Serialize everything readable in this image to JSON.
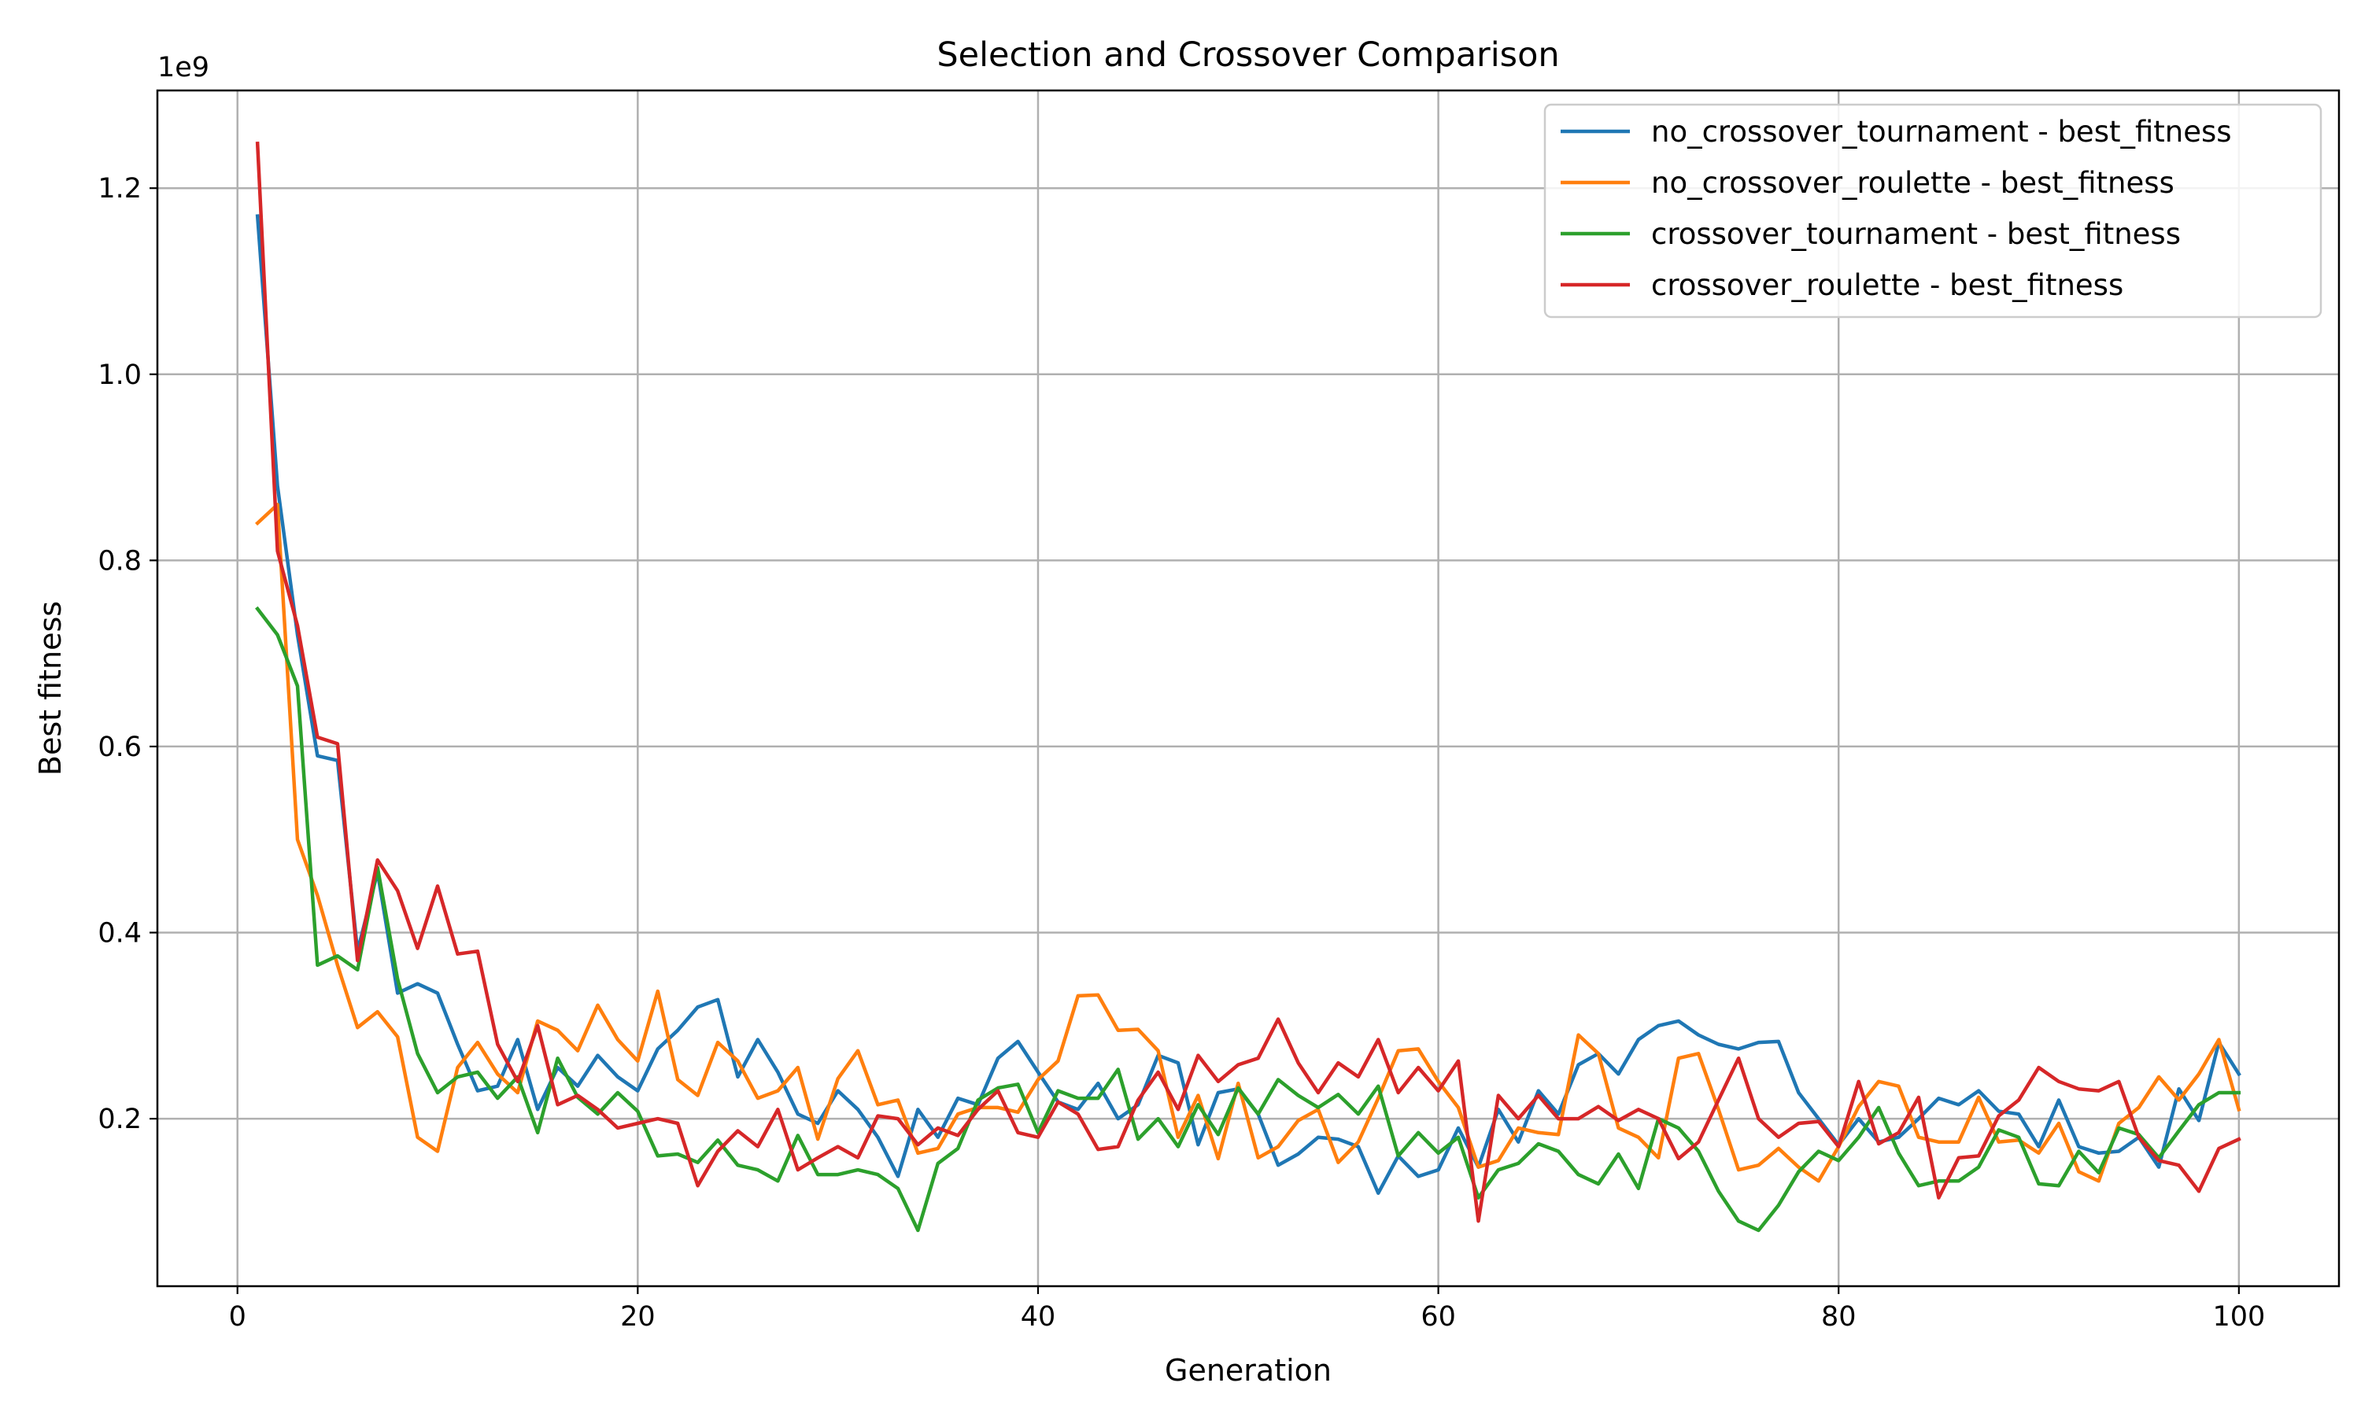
{
  "chart_data": {
    "type": "line",
    "title": "Selection and Crossover Comparison",
    "xlabel": "Generation",
    "ylabel": "Best fitness",
    "y_offset_label": "1e9",
    "xlim": [
      -4,
      105
    ],
    "ylim": [
      0.02,
      1.305
    ],
    "x_ticks": [
      0,
      20,
      40,
      60,
      80,
      100
    ],
    "y_ticks": [
      0.2,
      0.4,
      0.6,
      0.8,
      1.0,
      1.2
    ],
    "x_tick_labels": [
      "0",
      "20",
      "40",
      "60",
      "80",
      "100"
    ],
    "y_tick_labels": [
      "0.2",
      "0.4",
      "0.6",
      "0.8",
      "1.0",
      "1.2"
    ],
    "grid": true,
    "legend_position": "top-right",
    "x": [
      1,
      2,
      3,
      4,
      5,
      6,
      7,
      8,
      9,
      10,
      11,
      12,
      13,
      14,
      15,
      16,
      17,
      18,
      19,
      20,
      21,
      22,
      23,
      24,
      25,
      26,
      27,
      28,
      29,
      30,
      31,
      32,
      33,
      34,
      35,
      36,
      37,
      38,
      39,
      40,
      41,
      42,
      43,
      44,
      45,
      46,
      47,
      48,
      49,
      50,
      51,
      52,
      53,
      54,
      55,
      56,
      57,
      58,
      59,
      60,
      61,
      62,
      63,
      64,
      65,
      66,
      67,
      68,
      69,
      70,
      71,
      72,
      73,
      74,
      75,
      76,
      77,
      78,
      79,
      80,
      81,
      82,
      83,
      84,
      85,
      86,
      87,
      88,
      89,
      90,
      91,
      92,
      93,
      94,
      95,
      96,
      97,
      98,
      99,
      100
    ],
    "series": [
      {
        "name": "no_crossover_tournament - best_fitness",
        "color": "#1f77b4",
        "values": [
          1.17,
          0.88,
          0.72,
          0.59,
          0.585,
          0.38,
          0.465,
          0.335,
          0.345,
          0.335,
          0.28,
          0.23,
          0.235,
          0.285,
          0.21,
          0.255,
          0.235,
          0.268,
          0.245,
          0.23,
          0.275,
          0.295,
          0.32,
          0.328,
          0.245,
          0.285,
          0.25,
          0.205,
          0.195,
          0.23,
          0.21,
          0.18,
          0.138,
          0.21,
          0.18,
          0.222,
          0.215,
          0.265,
          0.283,
          0.25,
          0.218,
          0.21,
          0.238,
          0.2,
          0.215,
          0.268,
          0.26,
          0.172,
          0.228,
          0.232,
          0.205,
          0.15,
          0.162,
          0.18,
          0.178,
          0.17,
          0.12,
          0.16,
          0.138,
          0.145,
          0.19,
          0.148,
          0.21,
          0.175,
          0.23,
          0.205,
          0.258,
          0.27,
          0.248,
          0.285,
          0.3,
          0.305,
          0.29,
          0.28,
          0.275,
          0.282,
          0.283,
          0.228,
          0.2,
          0.172,
          0.2,
          0.175,
          0.18,
          0.2,
          0.222,
          0.215,
          0.23,
          0.208,
          0.205,
          0.17,
          0.22,
          0.17,
          0.163,
          0.165,
          0.18,
          0.148,
          0.232,
          0.198,
          0.282,
          0.248
        ]
      },
      {
        "name": "no_crossover_roulette - best_fitness",
        "color": "#ff7f0e",
        "values": [
          0.84,
          0.86,
          0.5,
          0.44,
          0.365,
          0.298,
          0.315,
          0.288,
          0.18,
          0.165,
          0.255,
          0.282,
          0.248,
          0.228,
          0.305,
          0.295,
          0.273,
          0.322,
          0.285,
          0.262,
          0.337,
          0.242,
          0.225,
          0.282,
          0.262,
          0.222,
          0.23,
          0.255,
          0.178,
          0.243,
          0.273,
          0.215,
          0.22,
          0.163,
          0.168,
          0.205,
          0.212,
          0.212,
          0.207,
          0.242,
          0.262,
          0.332,
          0.333,
          0.295,
          0.296,
          0.273,
          0.18,
          0.225,
          0.157,
          0.238,
          0.158,
          0.17,
          0.198,
          0.21,
          0.153,
          0.175,
          0.222,
          0.273,
          0.275,
          0.24,
          0.212,
          0.148,
          0.155,
          0.19,
          0.185,
          0.183,
          0.29,
          0.27,
          0.19,
          0.18,
          0.158,
          0.265,
          0.27,
          0.21,
          0.145,
          0.15,
          0.168,
          0.148,
          0.133,
          0.17,
          0.213,
          0.24,
          0.235,
          0.18,
          0.175,
          0.175,
          0.223,
          0.175,
          0.177,
          0.163,
          0.195,
          0.143,
          0.133,
          0.195,
          0.212,
          0.245,
          0.22,
          0.248,
          0.285,
          0.21
        ]
      },
      {
        "name": "crossover_tournament - best_fitness",
        "color": "#2ca02c",
        "values": [
          0.748,
          0.72,
          0.665,
          0.365,
          0.375,
          0.36,
          0.47,
          0.35,
          0.27,
          0.228,
          0.245,
          0.25,
          0.222,
          0.245,
          0.185,
          0.265,
          0.223,
          0.205,
          0.228,
          0.208,
          0.16,
          0.162,
          0.153,
          0.177,
          0.15,
          0.145,
          0.133,
          0.182,
          0.14,
          0.14,
          0.145,
          0.14,
          0.125,
          0.08,
          0.152,
          0.168,
          0.22,
          0.233,
          0.237,
          0.185,
          0.23,
          0.222,
          0.222,
          0.253,
          0.178,
          0.2,
          0.17,
          0.215,
          0.183,
          0.233,
          0.205,
          0.242,
          0.225,
          0.212,
          0.226,
          0.205,
          0.235,
          0.16,
          0.185,
          0.163,
          0.18,
          0.115,
          0.145,
          0.152,
          0.173,
          0.165,
          0.14,
          0.13,
          0.162,
          0.125,
          0.2,
          0.19,
          0.165,
          0.122,
          0.09,
          0.08,
          0.107,
          0.143,
          0.165,
          0.155,
          0.18,
          0.212,
          0.163,
          0.128,
          0.133,
          0.133,
          0.148,
          0.188,
          0.18,
          0.13,
          0.128,
          0.165,
          0.142,
          0.19,
          0.183,
          0.158,
          0.187,
          0.215,
          0.228,
          0.228
        ]
      },
      {
        "name": "crossover_roulette - best_fitness",
        "color": "#d62728",
        "values": [
          1.248,
          0.81,
          0.73,
          0.61,
          0.603,
          0.37,
          0.478,
          0.445,
          0.383,
          0.45,
          0.377,
          0.38,
          0.28,
          0.24,
          0.3,
          0.215,
          0.225,
          0.21,
          0.19,
          0.195,
          0.2,
          0.195,
          0.128,
          0.165,
          0.187,
          0.17,
          0.21,
          0.145,
          0.158,
          0.17,
          0.158,
          0.203,
          0.2,
          0.172,
          0.19,
          0.182,
          0.21,
          0.23,
          0.185,
          0.18,
          0.218,
          0.205,
          0.167,
          0.17,
          0.22,
          0.25,
          0.21,
          0.268,
          0.24,
          0.258,
          0.265,
          0.307,
          0.26,
          0.228,
          0.26,
          0.245,
          0.285,
          0.228,
          0.255,
          0.23,
          0.262,
          0.09,
          0.225,
          0.2,
          0.225,
          0.2,
          0.2,
          0.213,
          0.198,
          0.21,
          0.2,
          0.157,
          0.175,
          0.22,
          0.265,
          0.2,
          0.18,
          0.195,
          0.197,
          0.17,
          0.24,
          0.173,
          0.185,
          0.223,
          0.115,
          0.158,
          0.16,
          0.203,
          0.22,
          0.255,
          0.24,
          0.232,
          0.23,
          0.24,
          0.18,
          0.155,
          0.15,
          0.122,
          0.168,
          0.178
        ]
      }
    ]
  }
}
